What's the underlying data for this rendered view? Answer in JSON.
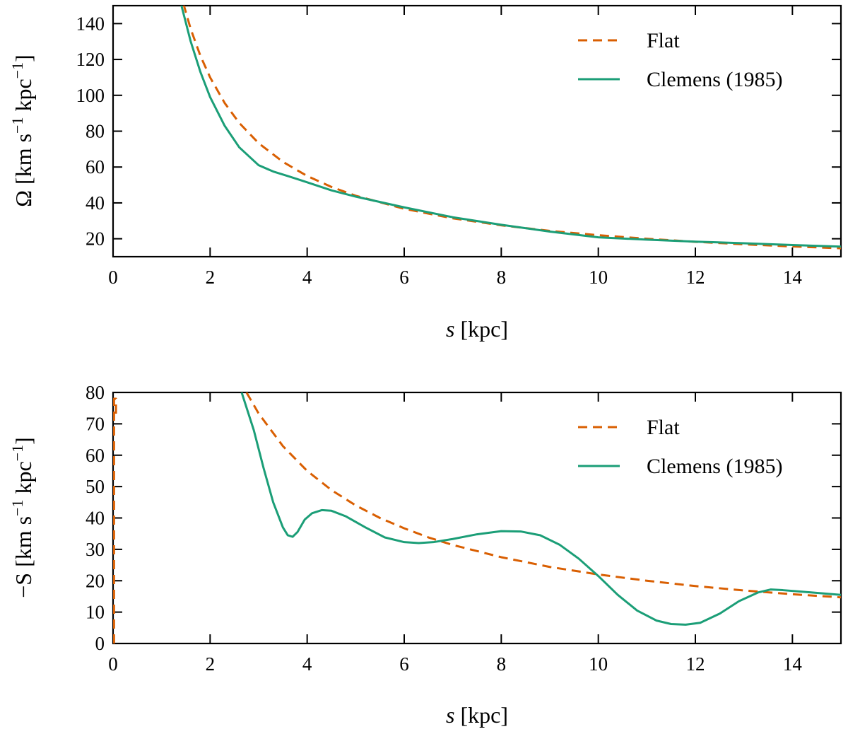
{
  "colors": {
    "flat": "#d95f02",
    "clemens": "#1b9e77",
    "axis": "#000000",
    "background": "#ffffff"
  },
  "chart_data": [
    {
      "type": "line",
      "xlabel_var": "s",
      "xlabel_unit": " [kpc]",
      "ylabel_prefix": "Ω [km s",
      "ylabel_mid": " kpc",
      "ylabel_suffix": "]",
      "ylabel_exp": "−1",
      "xlim": [
        0,
        15
      ],
      "ylim": [
        10,
        150
      ],
      "xticks": [
        0,
        2,
        4,
        6,
        8,
        10,
        12,
        14
      ],
      "yticks": [
        20,
        40,
        60,
        80,
        100,
        120,
        140
      ],
      "legend_position": "top-right",
      "series": [
        {
          "name": "Flat",
          "style": "dashed",
          "color": "#d95f02",
          "x": [
            1.45,
            1.6,
            1.8,
            2.0,
            2.3,
            2.6,
            3.0,
            3.5,
            4.0,
            4.5,
            5.0,
            6.0,
            7.0,
            8.0,
            9.0,
            10.0,
            11.0,
            12.0,
            13.0,
            14.0,
            15.0
          ],
          "y": [
            151,
            137,
            122,
            110,
            95.7,
            84.6,
            73.3,
            62.9,
            55.0,
            48.9,
            44.0,
            36.7,
            31.4,
            27.5,
            24.4,
            22.0,
            20.0,
            18.3,
            16.9,
            15.7,
            14.7
          ]
        },
        {
          "name": "Clemens (1985)",
          "style": "solid",
          "color": "#1b9e77",
          "x": [
            1.4,
            1.6,
            1.8,
            2.0,
            2.3,
            2.6,
            3.0,
            3.3,
            3.6,
            4.0,
            4.5,
            5.0,
            6.0,
            7.0,
            8.0,
            9.0,
            10.0,
            11.0,
            12.0,
            13.0,
            14.0,
            15.0
          ],
          "y": [
            151,
            130,
            113,
            99,
            83,
            71,
            61,
            57.5,
            55,
            51.5,
            47,
            43.5,
            37.5,
            32,
            27.8,
            24,
            20.8,
            19.5,
            18.4,
            17.5,
            16.5,
            15.6
          ]
        }
      ]
    },
    {
      "type": "line",
      "xlabel_var": "s",
      "xlabel_unit": " [kpc]",
      "ylabel_prefix": "−S [km s",
      "ylabel_mid": " kpc",
      "ylabel_suffix": "]",
      "ylabel_exp": "−1",
      "xlim": [
        0,
        15
      ],
      "ylim": [
        0,
        80
      ],
      "xticks": [
        0,
        2,
        4,
        6,
        8,
        10,
        12,
        14
      ],
      "yticks": [
        0,
        10,
        20,
        30,
        40,
        50,
        60,
        70,
        80
      ],
      "legend_position": "top-right",
      "series": [
        {
          "name": "Flat",
          "style": "dashed",
          "color": "#d95f02",
          "x": [
            0.02,
            0.02,
            0.06,
            0.06,
            null,
            2.75,
            3.0,
            3.5,
            4.0,
            4.5,
            5.0,
            5.5,
            6.0,
            6.5,
            7.0,
            8.0,
            9.0,
            10.0,
            11.0,
            12.0,
            13.0,
            14.0,
            15.0
          ],
          "y": [
            0,
            78,
            78,
            72,
            null,
            80,
            73.3,
            62.9,
            55.0,
            48.9,
            44.0,
            40.0,
            36.7,
            33.8,
            31.4,
            27.5,
            24.4,
            22.0,
            20.0,
            18.3,
            16.9,
            15.7,
            14.7
          ]
        },
        {
          "name": "Clemens (1985)",
          "style": "solid",
          "color": "#1b9e77",
          "x": [
            2.65,
            2.9,
            3.1,
            3.3,
            3.5,
            3.6,
            3.7,
            3.8,
            3.95,
            4.1,
            4.3,
            4.5,
            4.8,
            5.2,
            5.6,
            6.0,
            6.3,
            6.6,
            7.0,
            7.5,
            8.0,
            8.4,
            8.8,
            9.2,
            9.6,
            10.0,
            10.4,
            10.8,
            11.2,
            11.5,
            11.8,
            12.1,
            12.5,
            12.9,
            13.3,
            13.55,
            13.8,
            14.2,
            14.6,
            15.0
          ],
          "y": [
            80,
            68,
            56,
            45,
            37,
            34.5,
            34.0,
            35.5,
            39.5,
            41.5,
            42.5,
            42.3,
            40.5,
            37.0,
            33.8,
            32.3,
            32.0,
            32.3,
            33.3,
            34.8,
            35.8,
            35.7,
            34.5,
            31.5,
            27.0,
            21.5,
            15.5,
            10.5,
            7.3,
            6.2,
            6.0,
            6.6,
            9.5,
            13.5,
            16.3,
            17.2,
            17.0,
            16.5,
            16.0,
            15.5
          ]
        }
      ]
    }
  ]
}
